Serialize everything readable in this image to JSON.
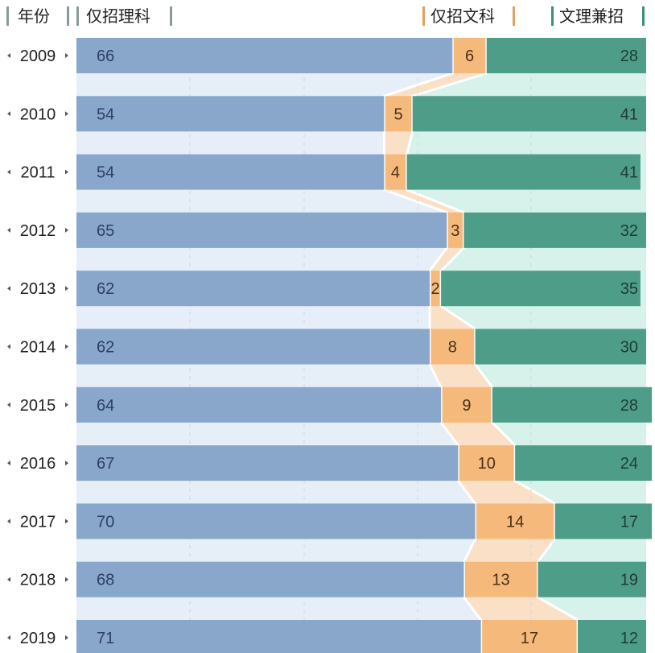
{
  "chart_data": {
    "type": "bar",
    "stacked": "100%",
    "orientation": "horizontal",
    "headers": {
      "year": "年份",
      "science_only": "仅招理科",
      "arts_only": "仅招文科",
      "both": "文理兼招"
    },
    "categories": [
      "2009",
      "2010",
      "2011",
      "2012",
      "2013",
      "2014",
      "2015",
      "2016",
      "2017",
      "2018",
      "2019"
    ],
    "series": [
      {
        "name": "仅招理科",
        "values": [
          66,
          54,
          54,
          65,
          62,
          62,
          64,
          67,
          70,
          68,
          71
        ]
      },
      {
        "name": "仅招文科",
        "values": [
          6,
          5,
          4,
          3,
          2,
          8,
          9,
          10,
          14,
          13,
          17
        ]
      },
      {
        "name": "文理兼招",
        "values": [
          28,
          41,
          41,
          32,
          35,
          30,
          28,
          24,
          17,
          19,
          12
        ]
      }
    ],
    "xlim": [
      0,
      100
    ],
    "colors": {
      "science_only": "#89a6cb",
      "arts_only": "#f5b97b",
      "both": "#4e9d88",
      "science_track": "#e6eef8",
      "arts_band": "#fbe0c8",
      "both_track": "#d6f2ea",
      "label_science": "#2e3f63",
      "label_arts": "#4a3015",
      "label_both": "#1d3d34"
    },
    "grid": false,
    "legend": "column headers at top"
  }
}
